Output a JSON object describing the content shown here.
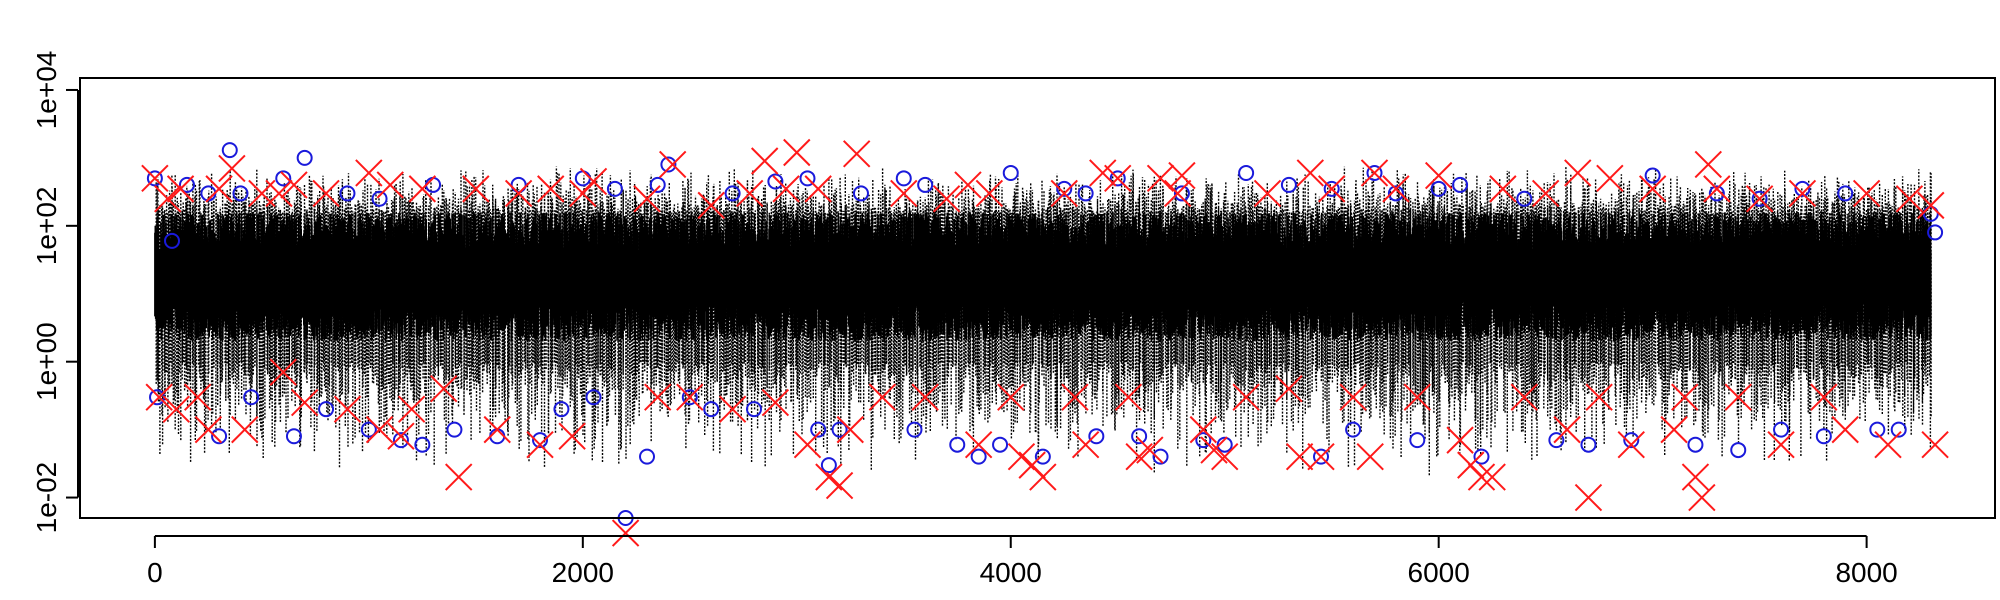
{
  "chart_data": {
    "type": "scatter",
    "title": "",
    "xlabel": "",
    "ylabel": "",
    "xlim": [
      -350,
      8600
    ],
    "ylim": [
      0.005,
      15000
    ],
    "yscale": "log",
    "grid": false,
    "x_ticks": [
      0,
      2000,
      4000,
      6000,
      8000
    ],
    "x_tick_labels": [
      "0",
      "2000",
      "4000",
      "6000",
      "8000"
    ],
    "y_ticks": [
      0.01,
      1,
      100,
      10000
    ],
    "y_tick_labels": [
      "1e-02",
      "1e+00",
      "1e+02",
      "1e+04"
    ],
    "n_observations": 8300,
    "background": {
      "description": "dense vertical dotted lines (one per observation) spanning the interval between per-observation lower and upper values",
      "color": "#000000",
      "typical_lower": 1,
      "typical_upper": 150,
      "extreme_lower": 0.02,
      "extreme_upper": 800
    },
    "series": [
      {
        "marker": "circle",
        "color": "#1a1adb",
        "points": [
          [
            0,
            500
          ],
          [
            10,
            0.3
          ],
          [
            80,
            60
          ],
          [
            150,
            400
          ],
          [
            250,
            300
          ],
          [
            300,
            0.08
          ],
          [
            350,
            1300
          ],
          [
            400,
            300
          ],
          [
            450,
            0.3
          ],
          [
            600,
            500
          ],
          [
            650,
            0.08
          ],
          [
            700,
            1000
          ],
          [
            800,
            0.2
          ],
          [
            900,
            300
          ],
          [
            1000,
            0.1
          ],
          [
            1050,
            250
          ],
          [
            1150,
            0.07
          ],
          [
            1250,
            0.06
          ],
          [
            1300,
            400
          ],
          [
            1400,
            0.1
          ],
          [
            1600,
            0.08
          ],
          [
            1700,
            400
          ],
          [
            1800,
            0.07
          ],
          [
            1900,
            0.2
          ],
          [
            2000,
            500
          ],
          [
            2050,
            0.3
          ],
          [
            2150,
            350
          ],
          [
            2200,
            0.005
          ],
          [
            2300,
            0.04
          ],
          [
            2350,
            400
          ],
          [
            2400,
            800
          ],
          [
            2500,
            0.3
          ],
          [
            2600,
            0.2
          ],
          [
            2700,
            300
          ],
          [
            2800,
            0.2
          ],
          [
            2900,
            450
          ],
          [
            3050,
            500
          ],
          [
            3100,
            0.1
          ],
          [
            3150,
            0.03
          ],
          [
            3200,
            0.1
          ],
          [
            3300,
            300
          ],
          [
            3500,
            500
          ],
          [
            3550,
            0.1
          ],
          [
            3600,
            400
          ],
          [
            3750,
            0.06
          ],
          [
            3850,
            0.04
          ],
          [
            3950,
            0.06
          ],
          [
            4000,
            600
          ],
          [
            4150,
            0.04
          ],
          [
            4250,
            350
          ],
          [
            4350,
            300
          ],
          [
            4400,
            0.08
          ],
          [
            4500,
            500
          ],
          [
            4600,
            0.08
          ],
          [
            4700,
            0.04
          ],
          [
            4800,
            300
          ],
          [
            4900,
            0.07
          ],
          [
            5000,
            0.06
          ],
          [
            5100,
            600
          ],
          [
            5300,
            400
          ],
          [
            5450,
            0.04
          ],
          [
            5500,
            350
          ],
          [
            5600,
            0.1
          ],
          [
            5700,
            600
          ],
          [
            5800,
            300
          ],
          [
            5900,
            0.07
          ],
          [
            6000,
            350
          ],
          [
            6100,
            400
          ],
          [
            6200,
            0.04
          ],
          [
            6400,
            250
          ],
          [
            6550,
            0.07
          ],
          [
            6700,
            0.06
          ],
          [
            6900,
            0.07
          ],
          [
            7000,
            550
          ],
          [
            7200,
            0.06
          ],
          [
            7300,
            300
          ],
          [
            7400,
            0.05
          ],
          [
            7500,
            250
          ],
          [
            7600,
            0.1
          ],
          [
            7700,
            350
          ],
          [
            7800,
            0.08
          ],
          [
            7900,
            300
          ],
          [
            8050,
            0.1
          ],
          [
            8150,
            0.1
          ],
          [
            8300,
            150
          ],
          [
            8320,
            80
          ]
        ]
      },
      {
        "marker": "cross",
        "color": "#ff1a1a",
        "points": [
          [
            0,
            500
          ],
          [
            20,
            0.3
          ],
          [
            60,
            250
          ],
          [
            100,
            0.2
          ],
          [
            120,
            350
          ],
          [
            200,
            0.3
          ],
          [
            250,
            0.1
          ],
          [
            300,
            350
          ],
          [
            360,
            700
          ],
          [
            420,
            0.1
          ],
          [
            500,
            300
          ],
          [
            580,
            300
          ],
          [
            600,
            0.7
          ],
          [
            650,
            400
          ],
          [
            700,
            0.25
          ],
          [
            800,
            300
          ],
          [
            900,
            0.2
          ],
          [
            1000,
            600
          ],
          [
            1050,
            0.1
          ],
          [
            1100,
            400
          ],
          [
            1150,
            0.08
          ],
          [
            1200,
            0.2
          ],
          [
            1250,
            350
          ],
          [
            1350,
            0.4
          ],
          [
            1420,
            0.02
          ],
          [
            1500,
            350
          ],
          [
            1600,
            0.1
          ],
          [
            1700,
            300
          ],
          [
            1800,
            0.06
          ],
          [
            1850,
            350
          ],
          [
            1950,
            0.08
          ],
          [
            2000,
            300
          ],
          [
            2050,
            450
          ],
          [
            2200,
            0.003
          ],
          [
            2300,
            250
          ],
          [
            2350,
            0.3
          ],
          [
            2420,
            800
          ],
          [
            2500,
            0.3
          ],
          [
            2600,
            200
          ],
          [
            2700,
            0.2
          ],
          [
            2780,
            300
          ],
          [
            2850,
            900
          ],
          [
            2900,
            0.25
          ],
          [
            2950,
            350
          ],
          [
            3000,
            1200
          ],
          [
            3050,
            0.06
          ],
          [
            3100,
            350
          ],
          [
            3150,
            0.02
          ],
          [
            3200,
            0.015
          ],
          [
            3250,
            0.1
          ],
          [
            3280,
            1150
          ],
          [
            3400,
            0.3
          ],
          [
            3500,
            300
          ],
          [
            3600,
            0.3
          ],
          [
            3700,
            250
          ],
          [
            3800,
            400
          ],
          [
            3850,
            0.06
          ],
          [
            3900,
            300
          ],
          [
            4000,
            0.3
          ],
          [
            4050,
            0.04
          ],
          [
            4100,
            0.03
          ],
          [
            4150,
            0.02
          ],
          [
            4250,
            300
          ],
          [
            4300,
            0.3
          ],
          [
            4350,
            0.06
          ],
          [
            4430,
            600
          ],
          [
            4500,
            500
          ],
          [
            4550,
            0.3
          ],
          [
            4600,
            0.04
          ],
          [
            4650,
            0.05
          ],
          [
            4700,
            500
          ],
          [
            4780,
            300
          ],
          [
            4800,
            550
          ],
          [
            4900,
            0.1
          ],
          [
            4950,
            0.05
          ],
          [
            5000,
            0.04
          ],
          [
            5100,
            0.3
          ],
          [
            5200,
            300
          ],
          [
            5300,
            0.4
          ],
          [
            5350,
            0.04
          ],
          [
            5400,
            600
          ],
          [
            5450,
            0.04
          ],
          [
            5500,
            350
          ],
          [
            5600,
            0.3
          ],
          [
            5680,
            0.04
          ],
          [
            5700,
            600
          ],
          [
            5800,
            350
          ],
          [
            5900,
            0.3
          ],
          [
            6000,
            550
          ],
          [
            6100,
            0.07
          ],
          [
            6150,
            0.03
          ],
          [
            6200,
            0.02
          ],
          [
            6250,
            0.02
          ],
          [
            6300,
            350
          ],
          [
            6400,
            0.3
          ],
          [
            6500,
            300
          ],
          [
            6600,
            0.1
          ],
          [
            6650,
            600
          ],
          [
            6700,
            0.01
          ],
          [
            6750,
            0.3
          ],
          [
            6800,
            500
          ],
          [
            6900,
            0.06
          ],
          [
            7000,
            350
          ],
          [
            7100,
            0.1
          ],
          [
            7150,
            0.3
          ],
          [
            7200,
            0.02
          ],
          [
            7230,
            0.01
          ],
          [
            7260,
            800
          ],
          [
            7300,
            350
          ],
          [
            7400,
            0.3
          ],
          [
            7500,
            250
          ],
          [
            7600,
            0.06
          ],
          [
            7700,
            300
          ],
          [
            7800,
            0.3
          ],
          [
            7900,
            0.1
          ],
          [
            8000,
            300
          ],
          [
            8100,
            0.06
          ],
          [
            8200,
            250
          ],
          [
            8300,
            200
          ],
          [
            8320,
            0.06
          ]
        ]
      }
    ]
  }
}
